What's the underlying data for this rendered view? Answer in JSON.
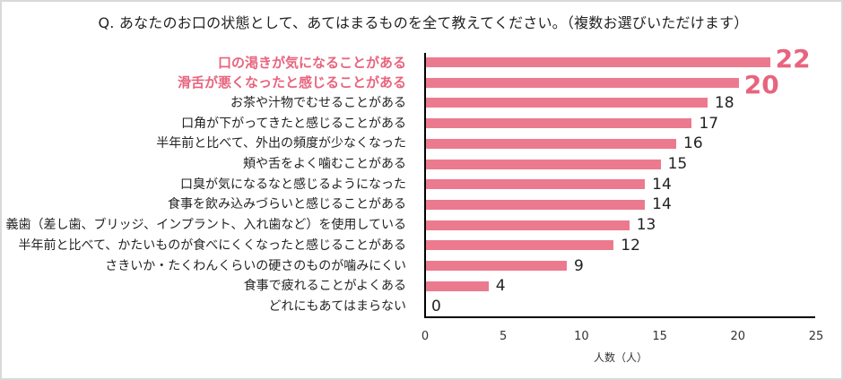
{
  "chart_data": {
    "type": "bar",
    "orientation": "horizontal",
    "title": "Q. あなたのお口の状態として、あてはまるものを全て教えてください。（複数お選びいただけます）",
    "xlabel": "人数（人）",
    "ylabel": "",
    "xlim": [
      0,
      25
    ],
    "xticks": [
      "0",
      "5",
      "10",
      "15",
      "20",
      "25"
    ],
    "grid": false,
    "legend": null,
    "bar_color": "#ec7a8e",
    "highlight_color": "#e8647e",
    "categories": [
      "口の渇きが気になることがある",
      "滑舌が悪くなったと感じることがある",
      "お茶や汁物でむせることがある",
      "口角が下がってきたと感じることがある",
      "半年前と比べて、外出の頻度が少なくなった",
      "頬や舌をよく噛むことがある",
      "口臭が気になるなと感じるようになった",
      "食事を飲み込みづらいと感じることがある",
      "義歯（差し歯、ブリッジ、インプラント、入れ歯など）を使用している",
      "半年前と比べて、かたいものが食べにくくなったと感じることがある",
      "さきいか・たくわんくらいの硬さのものが噛みにくい",
      "食事で疲れることがよくある",
      "どれにもあてはまらない"
    ],
    "values": [
      22,
      20,
      18,
      17,
      16,
      15,
      14,
      14,
      13,
      12,
      9,
      4,
      0
    ],
    "highlighted": [
      true,
      true,
      false,
      false,
      false,
      false,
      false,
      false,
      false,
      false,
      false,
      false,
      false
    ]
  },
  "labels": {
    "title": "Q. あなたのお口の状態として、あてはまるものを全て教えてください。（複数お選びいただけます）",
    "xlabel": "人数（人）",
    "ticks": [
      "0",
      "5",
      "10",
      "15",
      "20",
      "25"
    ],
    "rows": [
      {
        "label": "口の渇きが気になることがある",
        "value": "22"
      },
      {
        "label": "滑舌が悪くなったと感じることがある",
        "value": "20"
      },
      {
        "label": "お茶や汁物でむせることがある",
        "value": "18"
      },
      {
        "label": "口角が下がってきたと感じることがある",
        "value": "17"
      },
      {
        "label": "半年前と比べて、外出の頻度が少なくなった",
        "value": "16"
      },
      {
        "label": "頬や舌をよく噛むことがある",
        "value": "15"
      },
      {
        "label": "口臭が気になるなと感じるようになった",
        "value": "14"
      },
      {
        "label": "食事を飲み込みづらいと感じることがある",
        "value": "14"
      },
      {
        "label": "義歯（差し歯、ブリッジ、インプラント、入れ歯など）を使用している",
        "value": "13"
      },
      {
        "label": "半年前と比べて、かたいものが食べにくくなったと感じることがある",
        "value": "12"
      },
      {
        "label": "さきいか・たくわんくらいの硬さのものが噛みにくい",
        "value": "9"
      },
      {
        "label": "食事で疲れることがよくある",
        "value": "4"
      },
      {
        "label": "どれにもあてはまらない",
        "value": "0"
      }
    ]
  }
}
